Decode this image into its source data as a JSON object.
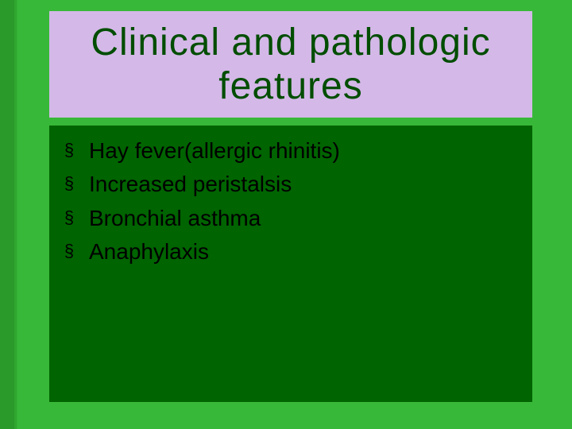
{
  "slide": {
    "background_gradient_from": "#2fa82f",
    "background_gradient_to": "#38b838",
    "left_stripe_color": "#2a9a2a"
  },
  "title": {
    "text": "Clinical and pathologic features",
    "background_color": "#d4b8e8",
    "text_color": "#004d00",
    "font_size": 48,
    "font_family": "Impact"
  },
  "content": {
    "background_color": "#006400",
    "bullet_glyph": "§",
    "bullet_color": "#000000",
    "text_color": "#000000",
    "text_font_size": 28,
    "items": [
      "Hay fever(allergic rhinitis)",
      "Increased peristalsis",
      "Bronchial asthma",
      "Anaphylaxis"
    ]
  }
}
